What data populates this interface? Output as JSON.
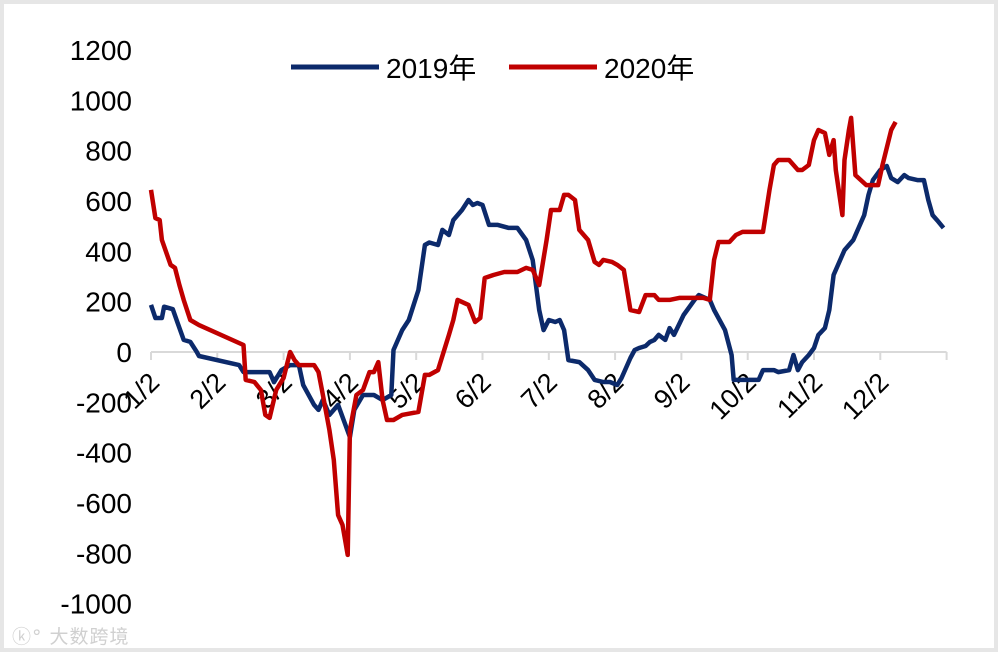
{
  "chart_data": {
    "type": "line",
    "title": "",
    "xlabel": "",
    "ylabel": "",
    "ylim": [
      -1000,
      1200
    ],
    "yticks": [
      1200,
      1000,
      800,
      600,
      400,
      200,
      0,
      -200,
      -400,
      -600,
      -800,
      -1000
    ],
    "xtick_labels": [
      "1/2",
      "2/2",
      "3/2",
      "4/2",
      "5/2",
      "6/2",
      "7/2",
      "8/2",
      "9/2",
      "10/2",
      "11/2",
      "12/2"
    ],
    "grid": false,
    "legend": "top-center",
    "series": [
      {
        "name": "2019年",
        "color": "#0c2a6b",
        "points": [
          [
            "1/2",
            187
          ],
          [
            "1/4",
            135
          ],
          [
            "1/7",
            135
          ],
          [
            "1/8",
            180
          ],
          [
            "1/12",
            170
          ],
          [
            "1/14",
            120
          ],
          [
            "1/17",
            48
          ],
          [
            "1/20",
            40
          ],
          [
            "1/23",
            0
          ],
          [
            "1/24",
            -16
          ],
          [
            "2/12",
            -52
          ],
          [
            "2/14",
            -80
          ],
          [
            "2/26",
            -80
          ],
          [
            "2/28",
            -120
          ],
          [
            "3/1",
            -72
          ],
          [
            "3/5",
            -52
          ],
          [
            "3/9",
            -52
          ],
          [
            "3/11",
            -131
          ],
          [
            "3/16",
            -210
          ],
          [
            "3/18",
            -230
          ],
          [
            "3/20",
            -190
          ],
          [
            "3/23",
            -250
          ],
          [
            "3/27",
            -210
          ],
          [
            "4/2",
            -338
          ],
          [
            "4/4",
            -230
          ],
          [
            "4/8",
            -171
          ],
          [
            "4/13",
            -171
          ],
          [
            "4/17",
            -191
          ],
          [
            "4/21",
            -171
          ],
          [
            "4/22",
            8
          ],
          [
            "4/26",
            87
          ],
          [
            "4/29",
            127
          ],
          [
            "5/3",
            246
          ],
          [
            "5/6",
            425
          ],
          [
            "5/8",
            435
          ],
          [
            "5/12",
            425
          ],
          [
            "5/14",
            485
          ],
          [
            "5/17",
            465
          ],
          [
            "5/19",
            524
          ],
          [
            "5/21",
            544
          ],
          [
            "5/23",
            564
          ],
          [
            "5/26",
            604
          ],
          [
            "5/28",
            584
          ],
          [
            "5/30",
            592
          ],
          [
            "6/2",
            584
          ],
          [
            "6/5",
            505
          ],
          [
            "6/9",
            505
          ],
          [
            "6/14",
            493
          ],
          [
            "6/18",
            493
          ],
          [
            "6/22",
            445
          ],
          [
            "6/25",
            365
          ],
          [
            "6/28",
            167
          ],
          [
            "6/30",
            87
          ],
          [
            "7/2",
            127
          ],
          [
            "7/5",
            119
          ],
          [
            "7/7",
            127
          ],
          [
            "7/9",
            87
          ],
          [
            "7/11",
            -32
          ],
          [
            "7/16",
            -40
          ],
          [
            "7/20",
            -72
          ],
          [
            "7/23",
            -111
          ],
          [
            "7/27",
            -119
          ],
          [
            "7/30",
            -119
          ],
          [
            "8/3",
            -131
          ],
          [
            "8/5",
            -103
          ],
          [
            "8/9",
            -24
          ],
          [
            "8/11",
            8
          ],
          [
            "8/13",
            16
          ],
          [
            "8/16",
            24
          ],
          [
            "8/18",
            40
          ],
          [
            "8/20",
            48
          ],
          [
            "8/22",
            68
          ],
          [
            "8/25",
            48
          ],
          [
            "8/27",
            95
          ],
          [
            "8/29",
            68
          ],
          [
            "9/3",
            147
          ],
          [
            "9/8",
            207
          ],
          [
            "9/10",
            226
          ],
          [
            "9/15",
            207
          ],
          [
            "9/17",
            167
          ],
          [
            "9/22",
            87
          ],
          [
            "9/25",
            -12
          ],
          [
            "9/26",
            -111
          ],
          [
            "10/7",
            -111
          ],
          [
            "10/9",
            -72
          ],
          [
            "10/14",
            -72
          ],
          [
            "10/16",
            -80
          ],
          [
            "10/21",
            -72
          ],
          [
            "10/23",
            -12
          ],
          [
            "10/25",
            -72
          ],
          [
            "10/27",
            -40
          ],
          [
            "10/30",
            -12
          ],
          [
            "11/2",
            16
          ],
          [
            "11/4",
            68
          ],
          [
            "11/7",
            95
          ],
          [
            "11/9",
            167
          ],
          [
            "11/11",
            306
          ],
          [
            "11/16",
            405
          ],
          [
            "11/20",
            445
          ],
          [
            "11/25",
            544
          ],
          [
            "11/27",
            624
          ],
          [
            "11/29",
            683
          ],
          [
            "12/2",
            723
          ],
          [
            "12/5",
            739
          ],
          [
            "12/7",
            691
          ],
          [
            "12/10",
            675
          ],
          [
            "12/13",
            703
          ],
          [
            "12/15",
            691
          ],
          [
            "12/19",
            683
          ],
          [
            "12/22",
            683
          ],
          [
            "12/24",
            604
          ],
          [
            "12/26",
            544
          ],
          [
            "12/28",
            524
          ],
          [
            "12/31",
            493
          ]
        ]
      },
      {
        "name": "2020年",
        "color": "#c00000",
        "points": [
          [
            "1/2",
            644
          ],
          [
            "1/4",
            532
          ],
          [
            "1/6",
            524
          ],
          [
            "1/7",
            445
          ],
          [
            "1/11",
            346
          ],
          [
            "1/13",
            334
          ],
          [
            "1/15",
            266
          ],
          [
            "1/17",
            207
          ],
          [
            "1/20",
            127
          ],
          [
            "1/24",
            107
          ],
          [
            "2/14",
            28
          ],
          [
            "2/15",
            -111
          ],
          [
            "2/19",
            -119
          ],
          [
            "2/22",
            -151
          ],
          [
            "2/24",
            -250
          ],
          [
            "2/26",
            -262
          ],
          [
            "2/29",
            -151
          ],
          [
            "3/2",
            -103
          ],
          [
            "3/5",
            0
          ],
          [
            "3/7",
            -32
          ],
          [
            "3/9",
            -52
          ],
          [
            "3/16",
            -52
          ],
          [
            "3/18",
            -80
          ],
          [
            "3/20",
            -171
          ],
          [
            "3/23",
            -310
          ],
          [
            "3/25",
            -429
          ],
          [
            "3/27",
            -648
          ],
          [
            "3/29",
            -687
          ],
          [
            "4/1",
            -806
          ],
          [
            "4/2",
            -310
          ],
          [
            "4/5",
            -171
          ],
          [
            "4/8",
            -151
          ],
          [
            "4/11",
            -80
          ],
          [
            "4/13",
            -80
          ],
          [
            "4/15",
            -40
          ],
          [
            "4/17",
            -191
          ],
          [
            "4/19",
            -270
          ],
          [
            "4/22",
            -270
          ],
          [
            "4/26",
            -250
          ],
          [
            "5/3",
            -238
          ],
          [
            "5/6",
            -91
          ],
          [
            "5/8",
            -91
          ],
          [
            "5/12",
            -72
          ],
          [
            "5/17",
            68
          ],
          [
            "5/19",
            127
          ],
          [
            "5/21",
            207
          ],
          [
            "5/26",
            187
          ],
          [
            "5/29",
            119
          ],
          [
            "6/1",
            135
          ],
          [
            "6/3",
            294
          ],
          [
            "6/7",
            306
          ],
          [
            "6/12",
            318
          ],
          [
            "6/18",
            318
          ],
          [
            "6/22",
            334
          ],
          [
            "6/25",
            326
          ],
          [
            "6/28",
            266
          ],
          [
            "7/1",
            445
          ],
          [
            "7/3",
            564
          ],
          [
            "7/7",
            564
          ],
          [
            "7/9",
            624
          ],
          [
            "7/11",
            624
          ],
          [
            "7/14",
            604
          ],
          [
            "7/16",
            485
          ],
          [
            "7/20",
            445
          ],
          [
            "7/23",
            358
          ],
          [
            "7/25",
            346
          ],
          [
            "7/27",
            366
          ],
          [
            "7/31",
            358
          ],
          [
            "8/3",
            346
          ],
          [
            "8/6",
            326
          ],
          [
            "8/9",
            167
          ],
          [
            "8/13",
            159
          ],
          [
            "8/16",
            226
          ],
          [
            "8/20",
            226
          ],
          [
            "8/22",
            207
          ],
          [
            "8/27",
            207
          ],
          [
            "9/1",
            215
          ],
          [
            "9/12",
            215
          ],
          [
            "9/15",
            207
          ],
          [
            "9/17",
            366
          ],
          [
            "9/19",
            437
          ],
          [
            "9/24",
            437
          ],
          [
            "9/27",
            465
          ],
          [
            "9/30",
            477
          ],
          [
            "10/9",
            477
          ],
          [
            "10/12",
            644
          ],
          [
            "10/14",
            743
          ],
          [
            "10/16",
            763
          ],
          [
            "10/21",
            763
          ],
          [
            "10/23",
            743
          ],
          [
            "10/25",
            723
          ],
          [
            "10/27",
            723
          ],
          [
            "10/30",
            743
          ],
          [
            "11/2",
            842
          ],
          [
            "11/4",
            882
          ],
          [
            "11/7",
            870
          ],
          [
            "11/9",
            783
          ],
          [
            "11/11",
            842
          ],
          [
            "11/12",
            723
          ],
          [
            "11/15",
            544
          ],
          [
            "11/16",
            763
          ],
          [
            "11/18",
            882
          ],
          [
            "11/19",
            930
          ],
          [
            "11/21",
            703
          ],
          [
            "11/26",
            663
          ],
          [
            "12/1",
            663
          ],
          [
            "12/3",
            743
          ],
          [
            "12/7",
            882
          ],
          [
            "12/9",
            914
          ]
        ]
      }
    ]
  },
  "watermark": "大数跨境"
}
